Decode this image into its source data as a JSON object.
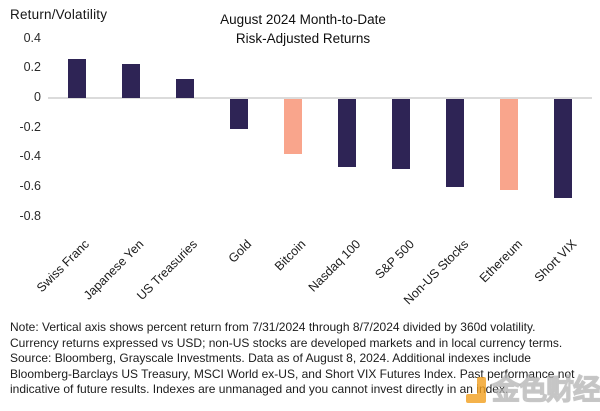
{
  "chart_data": {
    "type": "bar",
    "title_lines": [
      "August 2024 Month-to-Date",
      "Risk-Adjusted Returns"
    ],
    "y_axis_label": "Return/Volatility",
    "categories": [
      "Swiss Franc",
      "Japanese Yen",
      "US Treasuries",
      "Gold",
      "Bitcoin",
      "Nasdaq 100",
      "S&P 500",
      "Non-US Stocks",
      "Ethereum",
      "Short VIX"
    ],
    "values": [
      0.26,
      0.23,
      0.13,
      -0.2,
      -0.37,
      -0.46,
      -0.47,
      -0.59,
      -0.61,
      -0.67
    ],
    "bar_colors": [
      "#2E2455",
      "#2E2455",
      "#2E2455",
      "#2E2455",
      "#F9A58C",
      "#2E2455",
      "#2E2455",
      "#2E2455",
      "#F9A58C",
      "#2E2455"
    ],
    "y_tick_values": [
      0.4,
      0.2,
      0,
      -0.2,
      -0.4,
      -0.6,
      -0.8
    ],
    "y_tick_labels": [
      "0.4",
      "0.2",
      "0",
      "-0.2",
      "-0.4",
      "-0.6",
      "-0.8"
    ],
    "ylim": [
      -0.8,
      0.4
    ],
    "grid": false,
    "legend": "none",
    "zero_line_color": "#DBDBDB",
    "colors": {
      "navy": "#2E2455",
      "salmon": "#F9A58C"
    }
  },
  "note": {
    "lines": [
      "Note: Vertical axis shows percent return from 7/31/2024 through 8/7/2024 divided by 360d volatility.",
      "Currency returns expressed vs USD; non-US stocks are developed markets and in local currency terms.",
      "Source: Bloomberg, Grayscale Investments. Data as of August 8, 2024. Additional indexes include",
      "Bloomberg-Barclays US Treasury, MSCI World ex-US, and Short VIX Futures Index. Past performance not",
      "indicative of future results. Indexes are unmanaged and you cannot invest directly in an index."
    ]
  },
  "watermark": {
    "text": "金色财经",
    "logo_color": "#F2A01F"
  }
}
